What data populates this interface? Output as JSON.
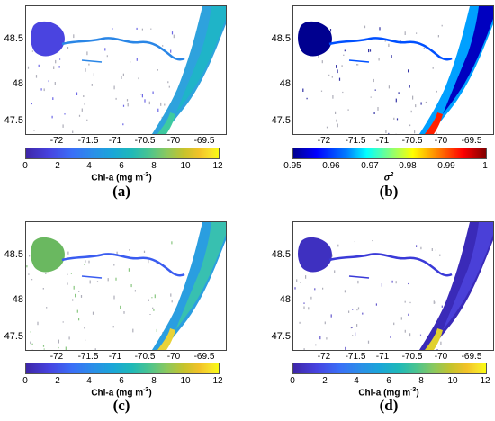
{
  "axes": {
    "x_ticks": [
      "-72",
      "-71.5",
      "-71",
      "-70.5",
      "-70",
      "-69.5"
    ],
    "y_ticks": [
      "48.5",
      "48",
      "47.5"
    ]
  },
  "panels": [
    {
      "label": "(a)",
      "colorbar": {
        "colormap": "parula",
        "ticks": [
          "0",
          "2",
          "4",
          "6",
          "8",
          "10",
          "12"
        ],
        "label": "Chl-a (mg m",
        "label_sup": "-3",
        "label_end": ")"
      },
      "map": {
        "lake_color": "#4a44e0",
        "river_color": "#2a86e6",
        "estuary_colors": [
          "#2ea2dd",
          "#1fb4c8",
          "#3ecaa0"
        ]
      }
    },
    {
      "label": "(b)",
      "colorbar": {
        "colormap": "jet",
        "ticks": [
          "0.95",
          "0.96",
          "0.97",
          "0.98",
          "0.99",
          "1"
        ],
        "label": "σ",
        "label_sup": "2",
        "label_end": ""
      },
      "map": {
        "lake_color": "#00008f",
        "river_color": "#0050ff",
        "estuary_colors": [
          "#00a0ff",
          "#0000c0",
          "#ff2000"
        ]
      }
    },
    {
      "label": "(c)",
      "colorbar": {
        "colormap": "parula",
        "ticks": [
          "0",
          "2",
          "4",
          "6",
          "8",
          "10",
          "12"
        ],
        "label": "Chl-a (mg m",
        "label_sup": "-3",
        "label_end": ")"
      },
      "map": {
        "lake_color": "#6ab860",
        "river_color": "#3a5cf0",
        "estuary_colors": [
          "#2a9ee0",
          "#38c0b0",
          "#e8d238"
        ]
      }
    },
    {
      "label": "(d)",
      "colorbar": {
        "colormap": "parula",
        "ticks": [
          "0",
          "2",
          "4",
          "6",
          "8",
          "10",
          "12"
        ],
        "label": "Chl-a (mg m",
        "label_sup": "-3",
        "label_end": ")"
      },
      "map": {
        "lake_color": "#3e30c0",
        "river_color": "#3a3ad8",
        "estuary_colors": [
          "#3a2ab8",
          "#4a40d8",
          "#e0d030"
        ]
      }
    }
  ]
}
